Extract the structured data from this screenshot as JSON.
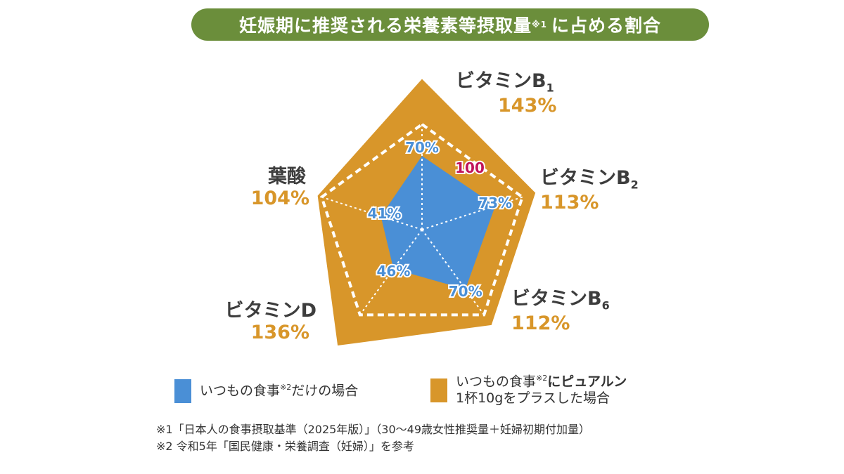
{
  "title": {
    "text": "妊娠期に推奨される栄養素等摂取量",
    "sup": "※1",
    "suffix": "に占める割合"
  },
  "chart_data": {
    "type": "radar",
    "categories": [
      "ビタミンB1",
      "ビタミンB2",
      "ビタミンB6",
      "ビタミンD",
      "葉酸"
    ],
    "reference_value": 100,
    "reference_label": "100",
    "series": [
      {
        "name": "いつもの食事※2だけの場合",
        "values": [
          70,
          73,
          70,
          46,
          41
        ],
        "labels": [
          "70%",
          "73%",
          "70%",
          "46%",
          "41%"
        ],
        "color": "#4a8fd6"
      },
      {
        "name": "いつもの食事※2にピュアルン1杯10gをプラスした場合",
        "values": [
          143,
          113,
          112,
          136,
          104
        ],
        "labels": [
          "143%",
          "113%",
          "112%",
          "136%",
          "104%"
        ],
        "color": "#d8962a"
      }
    ],
    "axis_labels": [
      {
        "name": "ビタミンB",
        "sub": "1",
        "value": "143%"
      },
      {
        "name": "ビタミンB",
        "sub": "2",
        "value": "113%"
      },
      {
        "name": "ビタミンB",
        "sub": "6",
        "value": "112%"
      },
      {
        "name": "ビタミンD",
        "sub": "",
        "value": "136%"
      },
      {
        "name": "葉酸",
        "sub": "",
        "value": "104%"
      }
    ]
  },
  "legend": [
    {
      "text1": "いつもの食事",
      "sup": "※2",
      "text2": "だけの場合",
      "line2": "",
      "color": "#4a8fd6"
    },
    {
      "text1": "いつもの食事",
      "sup": "※2",
      "text2": "にピュアルン",
      "line2": "1杯10gをプラスした場合",
      "color": "#d8962a"
    }
  ],
  "notes": [
    "※1「日本人の食事摂取基準（2025年版）」（30〜49歳女性推奨量＋妊婦初期付加量）",
    "※2 令和5年「国民健康・栄養調査（妊婦）」を参考"
  ]
}
